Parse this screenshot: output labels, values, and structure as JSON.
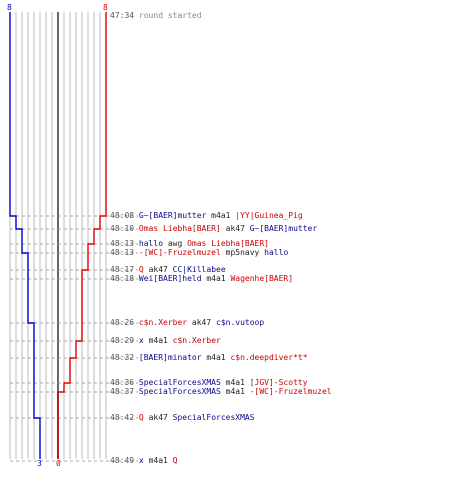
{
  "colors": {
    "blue": "#0000cc",
    "red": "#dd0000",
    "grid": "#bbbbbb",
    "center": "#666666",
    "dash": "#aaaaaa",
    "blue_text": "#0a0a8a",
    "red_text": "#cc0000"
  },
  "scores": {
    "blue_start": "8",
    "red_start": "8",
    "blue_end": "3",
    "red_end": "0"
  },
  "events": [
    {
      "time": "47:34",
      "parts": [
        {
          "t": "round started",
          "c": "grey"
        }
      ]
    },
    {
      "time": "48:08",
      "parts": [
        {
          "t": "G~[BAER]mutter",
          "c": "blue"
        },
        {
          "t": " m4a1 ",
          "c": "dark"
        },
        {
          "t": "|YY|Guinea_Pig",
          "c": "red"
        }
      ]
    },
    {
      "time": "48:10",
      "parts": [
        {
          "t": "Omas Liebha[BAER]",
          "c": "red"
        },
        {
          "t": " ak47 ",
          "c": "dark"
        },
        {
          "t": "G~[BAER]mutter",
          "c": "blue"
        }
      ]
    },
    {
      "time": "48:13",
      "parts": [
        {
          "t": "hallo",
          "c": "blue"
        },
        {
          "t": " awg ",
          "c": "dark"
        },
        {
          "t": "Omas Liebha[BAER]",
          "c": "red"
        }
      ]
    },
    {
      "time": "48:13",
      "parts": [
        {
          "t": "-[WC]-Fruzelmuzel",
          "c": "red"
        },
        {
          "t": " mp5navy ",
          "c": "dark"
        },
        {
          "t": "hallo",
          "c": "blue"
        }
      ]
    },
    {
      "time": "48:17",
      "parts": [
        {
          "t": "Q",
          "c": "red"
        },
        {
          "t": " ak47 ",
          "c": "dark"
        },
        {
          "t": "CC|Killabee",
          "c": "blue"
        }
      ]
    },
    {
      "time": "48:18",
      "parts": [
        {
          "t": "Wei[BAER]held",
          "c": "blue"
        },
        {
          "t": " m4a1 ",
          "c": "dark"
        },
        {
          "t": "Wagenhe[BAER]",
          "c": "red"
        }
      ]
    },
    {
      "time": "48:26",
      "parts": [
        {
          "t": "c$n.Xerber",
          "c": "red"
        },
        {
          "t": " ak47 ",
          "c": "dark"
        },
        {
          "t": "c$n.vutoop",
          "c": "blue"
        }
      ]
    },
    {
      "time": "48:29",
      "parts": [
        {
          "t": "x",
          "c": "blue"
        },
        {
          "t": " m4a1 ",
          "c": "dark"
        },
        {
          "t": "c$n.Xerber",
          "c": "red"
        }
      ]
    },
    {
      "time": "48:32",
      "parts": [
        {
          "t": "[BAER]minator",
          "c": "blue"
        },
        {
          "t": " m4a1 ",
          "c": "dark"
        },
        {
          "t": "c$n.deepdiver*t*",
          "c": "red"
        }
      ]
    },
    {
      "time": "48:36",
      "parts": [
        {
          "t": "SpecialForcesXMAS",
          "c": "blue"
        },
        {
          "t": " m4a1 ",
          "c": "dark"
        },
        {
          "t": "[JGV]-Scotty",
          "c": "red"
        }
      ]
    },
    {
      "time": "48:37",
      "parts": [
        {
          "t": "SpecialForcesXMAS",
          "c": "blue"
        },
        {
          "t": " m4a1 ",
          "c": "dark"
        },
        {
          "t": "-[WC]-Fruzelmuzel",
          "c": "red"
        }
      ]
    },
    {
      "time": "48:42",
      "parts": [
        {
          "t": "Q",
          "c": "red"
        },
        {
          "t": " ak47 ",
          "c": "dark"
        },
        {
          "t": "SpecialForcesXMAS",
          "c": "blue"
        }
      ]
    },
    {
      "time": "48:49",
      "parts": [
        {
          "t": "x",
          "c": "blue"
        },
        {
          "t": " m4a1 ",
          "c": "dark"
        },
        {
          "t": "Q",
          "c": "red"
        }
      ]
    }
  ]
}
